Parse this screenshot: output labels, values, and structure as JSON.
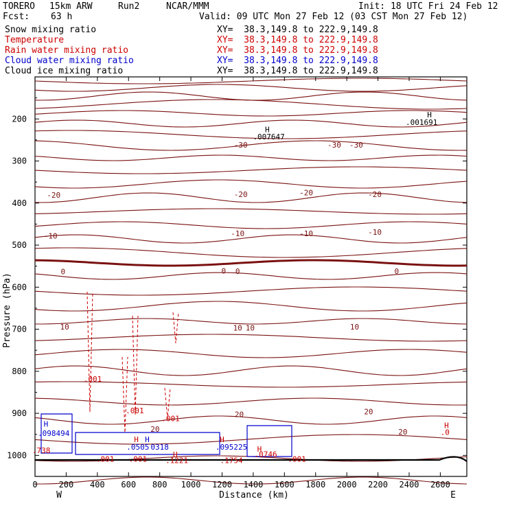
{
  "header": {
    "model": "TORERO",
    "resolution": "15km ARW",
    "run": "Run2",
    "org": "NCAR/MMM",
    "init": "Init: 18 UTC Fri 24 Feb 12",
    "fcst_label": "Fcst:",
    "fcst_value": "63 h",
    "valid": "Valid: 09 UTC Mon 27 Feb 12 (03 CST Mon 27 Feb 12)"
  },
  "legend": [
    {
      "label": "Snow mixing ratio",
      "xy": "XY=  38.3,149.8 to 222.9,149.8",
      "color": "#000000"
    },
    {
      "label": "Temperature",
      "xy": "XY=  38.3,149.8 to 222.9,149.8",
      "color": "#cc0000"
    },
    {
      "label": "Rain water mixing ratio",
      "xy": "XY=  38.3,149.8 to 222.9,149.8",
      "color": "#cc0000"
    },
    {
      "label": "Cloud water mixing ratio",
      "xy": "XY=  38.3,149.8 to 222.9,149.8",
      "color": "#0000cc"
    },
    {
      "label": "Cloud ice mixing ratio",
      "xy": "XY=  38.3,149.8 to 222.9,149.8",
      "color": "#000000"
    }
  ],
  "chart_data": {
    "type": "cross-section contour",
    "xlabel": "Distance (km)",
    "ylabel": "Pressure (hPa)",
    "xlim": [
      0,
      2770
    ],
    "ylim": [
      1050,
      100
    ],
    "xticks": [
      0,
      200,
      400,
      600,
      800,
      1000,
      1200,
      1400,
      1600,
      1800,
      2000,
      2200,
      2400,
      2600
    ],
    "yticks": [
      200,
      300,
      400,
      500,
      600,
      700,
      800,
      900,
      1000
    ],
    "west_label": "W",
    "east_label": "E",
    "temperature_labels": [
      {
        "text": "-30",
        "x": 1320,
        "p": 262
      },
      {
        "text": "-30",
        "x": 1920,
        "p": 262
      },
      {
        "text": "-30",
        "x": 2060,
        "p": 262
      },
      {
        "text": "-20",
        "x": 120,
        "p": 381
      },
      {
        "text": "-20",
        "x": 1320,
        "p": 379
      },
      {
        "text": "-20",
        "x": 1740,
        "p": 375
      },
      {
        "text": "-20",
        "x": 2180,
        "p": 379
      },
      {
        "text": "-10",
        "x": 100,
        "p": 478
      },
      {
        "text": "-10",
        "x": 1300,
        "p": 472
      },
      {
        "text": "-10",
        "x": 1740,
        "p": 472
      },
      {
        "text": "-10",
        "x": 2180,
        "p": 469
      },
      {
        "text": "0",
        "x": 180,
        "p": 563
      },
      {
        "text": "0",
        "x": 1210,
        "p": 561
      },
      {
        "text": "0",
        "x": 1300,
        "p": 562
      },
      {
        "text": "0",
        "x": 2320,
        "p": 562
      },
      {
        "text": "10",
        "x": 190,
        "p": 694
      },
      {
        "text": "10",
        "x": 1300,
        "p": 697
      },
      {
        "text": "10",
        "x": 1380,
        "p": 697
      },
      {
        "text": "10",
        "x": 2050,
        "p": 694
      },
      {
        "text": "20",
        "x": 770,
        "p": 937
      },
      {
        "text": "20",
        "x": 1310,
        "p": 902
      },
      {
        "text": "20",
        "x": 2140,
        "p": 896
      },
      {
        "text": "20",
        "x": 2360,
        "p": 944
      }
    ],
    "mixing_ratio_labels": [
      {
        "text": ".007647",
        "x": 1500,
        "p": 242,
        "color": "#000000"
      },
      {
        "text": ".001691",
        "x": 2480,
        "p": 208,
        "color": "#000000"
      },
      {
        "text": ".001",
        "x": 370,
        "p": 818,
        "color": "#cc0000"
      },
      {
        "text": ".001",
        "x": 640,
        "p": 893,
        "color": "#cc0000"
      },
      {
        "text": ".001",
        "x": 870,
        "p": 912,
        "color": "#cc0000"
      },
      {
        "text": ".098494",
        "x": 120,
        "p": 947,
        "color": "#0000cc"
      },
      {
        "text": ".0505",
        "x": 660,
        "p": 980,
        "color": "#0000cc"
      },
      {
        "text": "0318",
        "x": 800,
        "p": 980,
        "color": "#0000cc"
      },
      {
        "text": ".095225",
        "x": 1260,
        "p": 980,
        "color": "#0000cc"
      },
      {
        "text": ".0746",
        "x": 1480,
        "p": 997,
        "color": "#cc0000"
      },
      {
        "text": ".1221",
        "x": 910,
        "p": 1012,
        "color": "#cc0000"
      },
      {
        "text": ".1754",
        "x": 1260,
        "p": 1012,
        "color": "#cc0000"
      },
      {
        "text": ".001",
        "x": 450,
        "p": 1008,
        "color": "#cc0000"
      },
      {
        "text": ".001",
        "x": 660,
        "p": 1008,
        "color": "#cc0000"
      },
      {
        "text": ".001",
        "x": 1680,
        "p": 1008,
        "color": "#cc0000"
      },
      {
        "text": ".738",
        "x": 40,
        "p": 988,
        "color": "#cc0000"
      },
      {
        "text": ".0",
        "x": 2630,
        "p": 945,
        "color": "#cc0000"
      }
    ],
    "h_markers": [
      {
        "text": "H",
        "x": 1490,
        "p": 225,
        "color": "#000000"
      },
      {
        "text": "H",
        "x": 2530,
        "p": 190,
        "color": "#000000"
      },
      {
        "text": "H",
        "x": 70,
        "p": 925,
        "color": "#0000cc"
      },
      {
        "text": "H",
        "x": 650,
        "p": 962,
        "color": "#cc0000"
      },
      {
        "text": "H",
        "x": 720,
        "p": 962,
        "color": "#0000cc"
      },
      {
        "text": "H",
        "x": 1200,
        "p": 962,
        "color": "#cc0000"
      },
      {
        "text": "H",
        "x": 900,
        "p": 998,
        "color": "#cc0000"
      },
      {
        "text": "H",
        "x": 1440,
        "p": 985,
        "color": "#cc0000"
      },
      {
        "text": "H",
        "x": 2640,
        "p": 928,
        "color": "#cc0000"
      }
    ]
  }
}
